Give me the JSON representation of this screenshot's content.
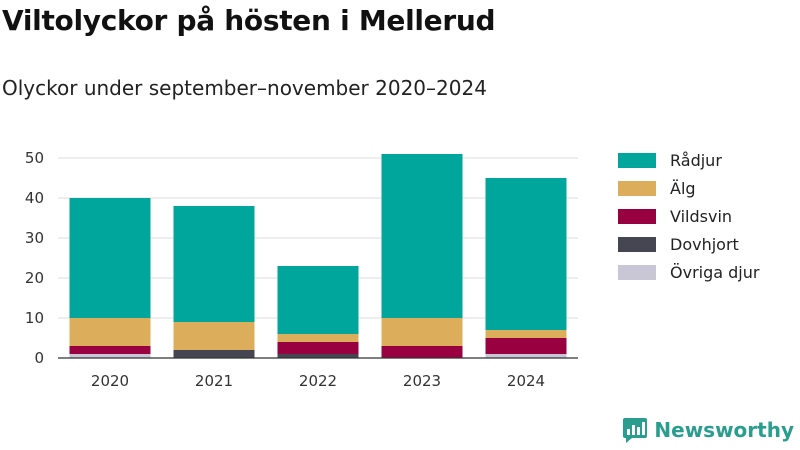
{
  "header": {
    "title": "Viltolyckor på hösten i Mellerud",
    "subtitle": "Olyckor under september–november 2020–2024"
  },
  "brand": {
    "name": "Newsworthy",
    "icon": "newsworthy-logo-icon",
    "color": "#2a9d8f"
  },
  "chart_data": {
    "type": "bar",
    "stacked": true,
    "categories": [
      "2020",
      "2021",
      "2022",
      "2023",
      "2024"
    ],
    "series": [
      {
        "name": "Övriga djur",
        "color": "#c9c6d6",
        "values": [
          1,
          0,
          0,
          0,
          1
        ]
      },
      {
        "name": "Dovhjort",
        "color": "#464552",
        "values": [
          0,
          2,
          1,
          0,
          0
        ]
      },
      {
        "name": "Vildsvin",
        "color": "#990040",
        "values": [
          2,
          0,
          3,
          3,
          4
        ]
      },
      {
        "name": "Älg",
        "color": "#dcae5b",
        "values": [
          7,
          7,
          2,
          7,
          2
        ]
      },
      {
        "name": "Rådjur",
        "color": "#00a69c",
        "values": [
          30,
          29,
          17,
          41,
          38
        ]
      }
    ],
    "legend_order": [
      "Rådjur",
      "Älg",
      "Vildsvin",
      "Dovhjort",
      "Övriga djur"
    ],
    "y_ticks": [
      0,
      10,
      20,
      30,
      40,
      50
    ],
    "ylim": [
      0,
      52
    ],
    "grid": true,
    "legend_position": "right"
  }
}
